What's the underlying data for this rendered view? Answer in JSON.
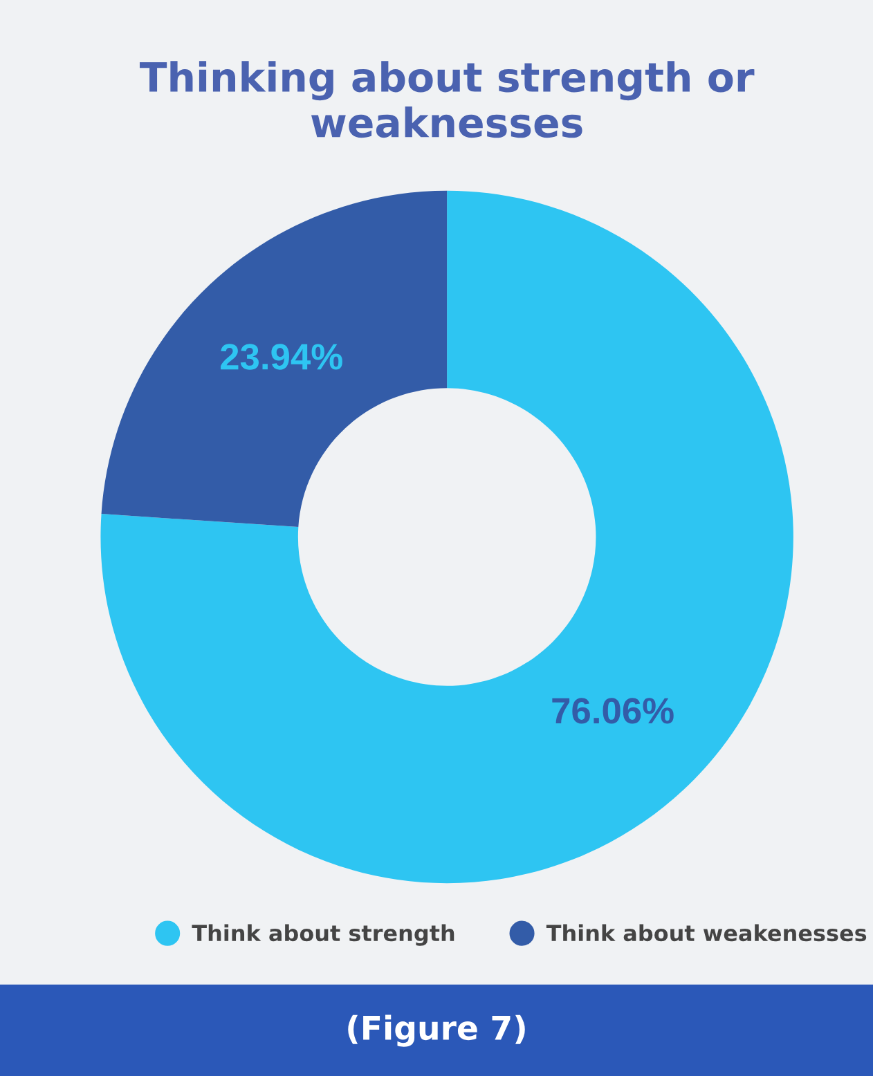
{
  "chart_data": {
    "type": "donut",
    "title": "Thinking about strength or weaknesses",
    "categories": [
      "Think about strength",
      "Think about weakenesses"
    ],
    "values": [
      76.06,
      23.94
    ],
    "colors": [
      "#2ec5f2",
      "#335ca8"
    ],
    "value_labels": [
      "76.06%",
      "23.94%"
    ],
    "legend": "bottom",
    "annotations": [
      "(Figure 7)"
    ]
  }
}
